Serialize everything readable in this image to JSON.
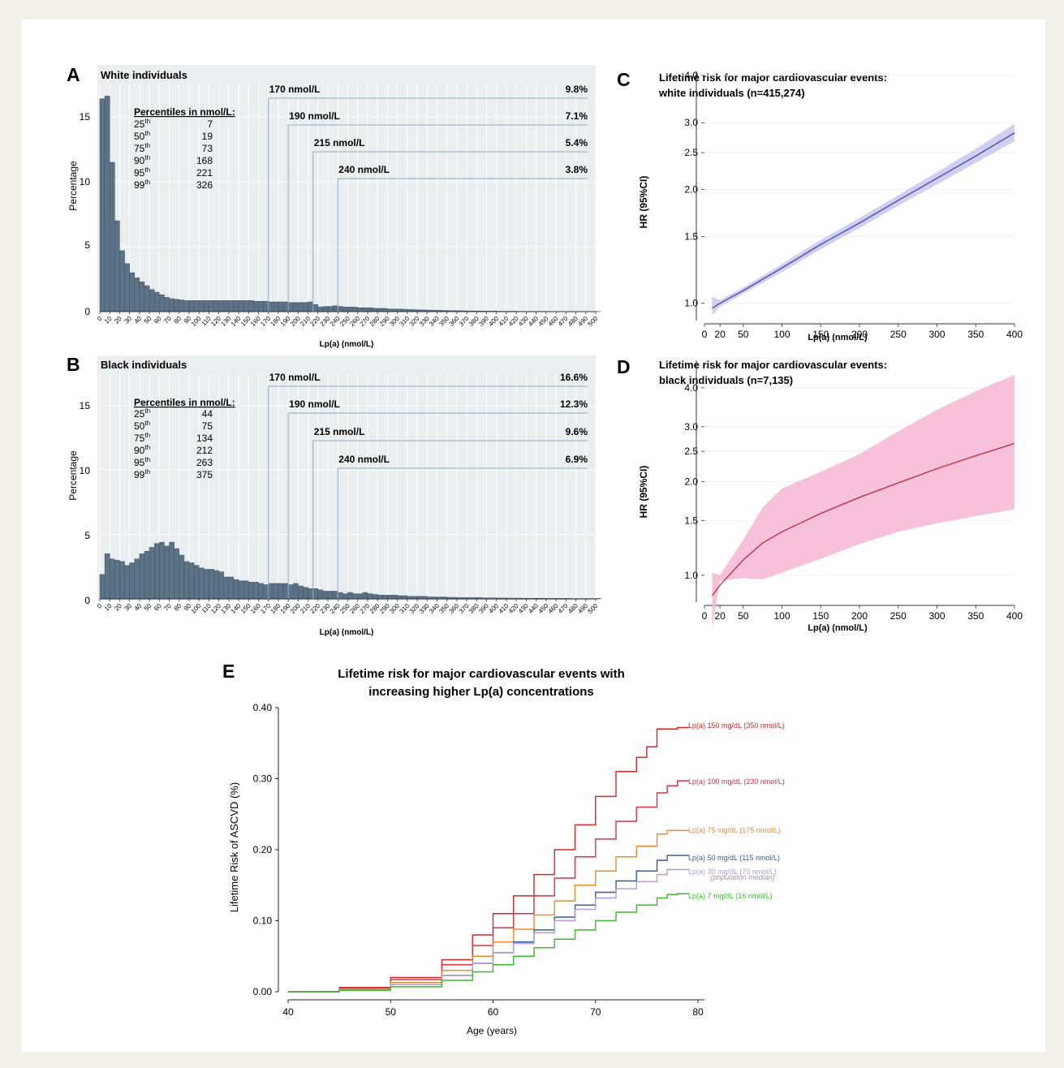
{
  "colors": {
    "bar": "#5c7285",
    "grid": "#e9eef1",
    "ref": "#8ea9bf",
    "line_c": "#4a4fa8",
    "band_c": "#c5c7ef",
    "line_d": "#c0344a",
    "band_d": "#f6b6d5",
    "background": "#f1efe7"
  },
  "panels": {
    "A": {
      "letter": "A",
      "title": "White individuals",
      "ylabel": "Percentage",
      "xlabel": "Lp(a) (nmol/L)",
      "yticks": [
        "0",
        "5",
        "10",
        "15"
      ],
      "pct_header": "Percentiles in nmol/L:",
      "percentiles": [
        {
          "p": "25",
          "sup": "th",
          "v": "7"
        },
        {
          "p": "50",
          "sup": "th",
          "v": "19"
        },
        {
          "p": "75",
          "sup": "th",
          "v": "73"
        },
        {
          "p": "90",
          "sup": "th",
          "v": "168"
        },
        {
          "p": "95",
          "sup": "th",
          "v": "221"
        },
        {
          "p": "99",
          "sup": "th",
          "v": "326"
        }
      ],
      "refs": [
        {
          "label": "170 nmol/L",
          "pct": "9.8%"
        },
        {
          "label": "190 nmol/L",
          "pct": "7.1%"
        },
        {
          "label": "215 nmol/L",
          "pct": "5.4%"
        },
        {
          "label": "240 nmol/L",
          "pct": "3.8%"
        }
      ]
    },
    "B": {
      "letter": "B",
      "title": "Black individuals",
      "ylabel": "Percentage",
      "xlabel": "Lp(a) (nmol/L)",
      "yticks": [
        "0",
        "5",
        "10",
        "15"
      ],
      "pct_header": "Percentiles in nmol/L:",
      "percentiles": [
        {
          "p": "25",
          "sup": "th",
          "v": "44"
        },
        {
          "p": "50",
          "sup": "th",
          "v": "75"
        },
        {
          "p": "75",
          "sup": "th",
          "v": "134"
        },
        {
          "p": "90",
          "sup": "th",
          "v": "212"
        },
        {
          "p": "95",
          "sup": "th",
          "v": "263"
        },
        {
          "p": "99",
          "sup": "th",
          "v": "375"
        }
      ],
      "refs": [
        {
          "label": "170 nmol/L",
          "pct": "16.6%"
        },
        {
          "label": "190 nmol/L",
          "pct": "12.3%"
        },
        {
          "label": "215 nmol/L",
          "pct": "9.6%"
        },
        {
          "label": "240 nmol/L",
          "pct": "6.9%"
        }
      ]
    },
    "C": {
      "letter": "C",
      "title_line1": "Lifetime risk for major cardiovascular events:",
      "title_line2": "white individuals (n=415,274)",
      "ylabel": "HR (95%CI)",
      "xlabel": "Lp(a)  (nmol/L)"
    },
    "D": {
      "letter": "D",
      "title_line1": "Lifetime risk for major cardiovascular events:",
      "title_line2": "black individuals (n=7,135)",
      "ylabel": "HR (95%CI)",
      "xlabel": "Lp(a)  (nmol/L)"
    },
    "E": {
      "letter": "E",
      "title_line1": "Lifetime risk for major cardiovascular events with",
      "title_line2": "increasing higher Lp(a) concentrations",
      "ylabel": "Lifetime Risk of ASCVD (%)",
      "xlabel": "Age (years)",
      "note": "(population median)"
    }
  },
  "chart_data": [
    {
      "type": "bar",
      "id": "A",
      "x_tick_labels": [
        "0",
        "10",
        "20",
        "30",
        "40",
        "50",
        "60",
        "70",
        "80",
        "90",
        "100",
        "110",
        "120",
        "130",
        "140",
        "150",
        "160",
        "170",
        "180",
        "190",
        "200",
        "210",
        "220",
        "230",
        "240",
        "250",
        "260",
        "270",
        "280",
        "290",
        "300",
        "310",
        "320",
        "330",
        "340",
        "350",
        "360",
        "370",
        "380",
        "390",
        "400",
        "410",
        "420",
        "430",
        "440",
        "450",
        "460",
        "470",
        "480",
        "490",
        "500"
      ],
      "bin_width": 5,
      "ylim": [
        0,
        17.5
      ],
      "values": [
        16.4,
        16.6,
        11.5,
        7.0,
        4.7,
        3.7,
        3.0,
        2.6,
        2.3,
        2.0,
        1.7,
        1.5,
        1.3,
        1.1,
        1.0,
        0.95,
        0.9,
        0.85,
        0.85,
        0.85,
        0.85,
        0.85,
        0.85,
        0.85,
        0.85,
        0.85,
        0.85,
        0.85,
        0.85,
        0.85,
        0.85,
        0.8,
        0.8,
        0.8,
        0.75,
        0.75,
        0.75,
        0.75,
        0.7,
        0.7,
        0.7,
        0.7,
        0.75,
        0.55,
        0.35,
        0.4,
        0.4,
        0.45,
        0.4,
        0.35,
        0.35,
        0.35,
        0.3,
        0.3,
        0.3,
        0.25,
        0.25,
        0.25,
        0.2,
        0.2,
        0.2,
        0.18,
        0.16,
        0.15,
        0.14,
        0.13,
        0.12,
        0.11,
        0.1,
        0.09,
        0.08,
        0.07,
        0.07,
        0.06,
        0.06,
        0.05,
        0.05,
        0.04,
        0.04,
        0.04,
        0.03,
        0.03,
        0.03,
        0.03,
        0.02,
        0.02,
        0.02,
        0.02,
        0.02,
        0.02,
        0.02,
        0.01,
        0.01,
        0.01,
        0.01,
        0.01,
        0.01,
        0.01,
        0.01,
        0.01,
        0.01
      ]
    },
    {
      "type": "bar",
      "id": "B",
      "x_tick_labels": [
        "0",
        "10",
        "20",
        "30",
        "40",
        "50",
        "60",
        "70",
        "80",
        "90",
        "100",
        "110",
        "120",
        "130",
        "140",
        "150",
        "160",
        "170",
        "180",
        "190",
        "200",
        "210",
        "220",
        "230",
        "240",
        "250",
        "260",
        "270",
        "280",
        "290",
        "300",
        "310",
        "320",
        "330",
        "340",
        "350",
        "360",
        "370",
        "380",
        "390",
        "400",
        "410",
        "420",
        "430",
        "440",
        "450",
        "460",
        "470",
        "480",
        "490",
        "500"
      ],
      "bin_width": 5,
      "ylim": [
        0,
        17.5
      ],
      "values": [
        1.9,
        3.5,
        3.1,
        3.0,
        2.9,
        2.6,
        2.8,
        3.1,
        3.5,
        3.7,
        4.0,
        4.3,
        4.4,
        4.1,
        4.4,
        3.9,
        3.4,
        2.9,
        2.8,
        2.6,
        2.4,
        2.3,
        2.3,
        2.2,
        2.1,
        1.7,
        1.7,
        1.5,
        1.4,
        1.4,
        1.3,
        1.3,
        1.2,
        1.1,
        1.2,
        1.2,
        1.2,
        1.2,
        1.1,
        1.2,
        1.0,
        0.9,
        0.8,
        0.8,
        0.7,
        0.6,
        0.6,
        0.6,
        0.5,
        0.4,
        0.5,
        0.4,
        0.4,
        0.5,
        0.4,
        0.35,
        0.3,
        0.3,
        0.3,
        0.3,
        0.25,
        0.25,
        0.2,
        0.2,
        0.2,
        0.2,
        0.15,
        0.15,
        0.15,
        0.15,
        0.12,
        0.12,
        0.1,
        0.1,
        0.1,
        0.1,
        0.1,
        0.08,
        0.08,
        0.08,
        0.07,
        0.07,
        0.06,
        0.06,
        0.06,
        0.05,
        0.05,
        0.05,
        0.05,
        0.05,
        0.04,
        0.04,
        0.04,
        0.04,
        0.04,
        0.03,
        0.03,
        0.03,
        0.03,
        0.03,
        0.05
      ]
    },
    {
      "type": "line",
      "id": "C",
      "x": [
        10,
        20,
        50,
        100,
        150,
        200,
        250,
        300,
        350,
        400
      ],
      "y": [
        0.97,
        1.0,
        1.08,
        1.24,
        1.43,
        1.63,
        1.87,
        2.14,
        2.45,
        2.82
      ],
      "y_lower": [
        0.93,
        0.98,
        1.06,
        1.21,
        1.39,
        1.58,
        1.81,
        2.06,
        2.35,
        2.68
      ],
      "y_upper": [
        1.04,
        1.02,
        1.1,
        1.27,
        1.47,
        1.68,
        1.93,
        2.22,
        2.56,
        2.98
      ],
      "xticks": [
        0,
        20,
        50,
        100,
        150,
        200,
        250,
        300,
        350,
        400
      ],
      "yticks": [
        1.0,
        1.5,
        2.0,
        2.5,
        3.0,
        4.0
      ],
      "ylim": [
        0.9,
        4.1
      ],
      "xlim": [
        0,
        400
      ],
      "y_scale": "log"
    },
    {
      "type": "line",
      "id": "D",
      "x": [
        10,
        20,
        50,
        75,
        100,
        150,
        200,
        250,
        300,
        350,
        400
      ],
      "y": [
        0.86,
        0.93,
        1.12,
        1.27,
        1.38,
        1.58,
        1.78,
        1.98,
        2.2,
        2.42,
        2.65
      ],
      "y_lower": [
        0.68,
        0.96,
        0.98,
        0.97,
        1.02,
        1.13,
        1.26,
        1.38,
        1.47,
        1.55,
        1.63
      ],
      "y_upper": [
        1.02,
        1.0,
        1.3,
        1.65,
        1.9,
        2.15,
        2.45,
        2.9,
        3.4,
        3.9,
        4.4
      ],
      "xticks": [
        0,
        20,
        50,
        100,
        150,
        200,
        250,
        300,
        350,
        400
      ],
      "yticks": [
        1.0,
        1.5,
        2.0,
        2.5,
        3.0,
        4.0
      ],
      "ylim": [
        0.82,
        4.9
      ],
      "xlim": [
        0,
        400
      ],
      "y_scale": "log"
    },
    {
      "type": "line",
      "id": "E",
      "xlim": [
        40,
        80
      ],
      "ylim": [
        0,
        0.4
      ],
      "xticks": [
        40,
        50,
        60,
        70,
        80
      ],
      "yticks": [
        "0.00",
        "0.10",
        "0.20",
        "0.30",
        "0.40"
      ],
      "series": [
        {
          "name": "Lp(a) 150 mg/dL (350 nmol/L)",
          "color": "#d42727",
          "x": [
            40,
            45,
            50,
            55,
            58,
            60,
            62,
            64,
            66,
            68,
            70,
            72,
            74,
            75,
            76,
            78
          ],
          "y": [
            0,
            0.006,
            0.02,
            0.045,
            0.08,
            0.11,
            0.135,
            0.165,
            0.2,
            0.235,
            0.275,
            0.31,
            0.33,
            0.345,
            0.37,
            0.372
          ]
        },
        {
          "name": "Lp(a) 100 mg/dL (230 nmol/L)",
          "color": "#d93244",
          "x": [
            40,
            45,
            50,
            55,
            58,
            60,
            62,
            64,
            66,
            68,
            70,
            72,
            74,
            76,
            77,
            78
          ],
          "y": [
            0,
            0.005,
            0.017,
            0.038,
            0.065,
            0.09,
            0.11,
            0.135,
            0.16,
            0.19,
            0.215,
            0.24,
            0.26,
            0.28,
            0.29,
            0.297
          ]
        },
        {
          "name": "Lp(a) 75 mg/dL (175 nmol/L)",
          "color": "#ef8a2c",
          "x": [
            40,
            45,
            50,
            55,
            58,
            60,
            62,
            64,
            66,
            68,
            70,
            72,
            74,
            76,
            77,
            78
          ],
          "y": [
            0,
            0.004,
            0.013,
            0.03,
            0.05,
            0.07,
            0.088,
            0.108,
            0.128,
            0.15,
            0.17,
            0.19,
            0.205,
            0.222,
            0.227,
            0.227
          ]
        },
        {
          "name": "Lp(a) 50 mg/dL (115 nmol/L)",
          "color": "#355b9c",
          "x": [
            40,
            45,
            50,
            55,
            58,
            60,
            62,
            64,
            66,
            68,
            70,
            72,
            74,
            76,
            77,
            78
          ],
          "y": [
            0,
            0.003,
            0.01,
            0.023,
            0.04,
            0.055,
            0.07,
            0.087,
            0.105,
            0.122,
            0.14,
            0.156,
            0.17,
            0.185,
            0.192,
            0.192
          ]
        },
        {
          "name": "Lp(a) 30 mg/dL (70 nmol/L)",
          "color": "#b59ad6",
          "x": [
            40,
            45,
            50,
            55,
            58,
            60,
            62,
            64,
            66,
            68,
            70,
            72,
            74,
            76,
            77,
            78
          ],
          "y": [
            0,
            0.003,
            0.01,
            0.023,
            0.04,
            0.055,
            0.068,
            0.083,
            0.1,
            0.116,
            0.132,
            0.145,
            0.155,
            0.165,
            0.172,
            0.172
          ]
        },
        {
          "name": "Lp(a) 7 mg/dL (16 nmol/L)",
          "color": "#3cba2f",
          "x": [
            40,
            45,
            50,
            55,
            58,
            60,
            62,
            64,
            66,
            68,
            70,
            72,
            74,
            76,
            77,
            78
          ],
          "y": [
            0,
            0.002,
            0.007,
            0.016,
            0.028,
            0.038,
            0.05,
            0.062,
            0.074,
            0.087,
            0.1,
            0.112,
            0.122,
            0.132,
            0.137,
            0.138
          ]
        }
      ]
    }
  ]
}
